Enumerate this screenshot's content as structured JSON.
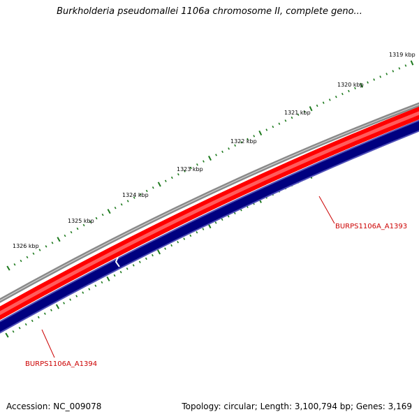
{
  "header": {
    "title": "Burkholderia pseudomallei 1106a chromosome II, complete geno..."
  },
  "ruler": {
    "labels": [
      "1319 kbp",
      "1320 kbp",
      "1321 kbp",
      "1322 kbp",
      "1323 kbp",
      "1324 kbp",
      "1325 kbp",
      "1326 kbp"
    ]
  },
  "features": {
    "gene_a_label": "BURPS1106A_A1393",
    "gene_b_label": "BURPS1106A_A1394"
  },
  "footer": {
    "accession": "Accession: NC_009078",
    "summary": "Topology: circular; Length: 3,100,794 bp; Genes: 3,169"
  },
  "colors": {
    "tick": "#1e7a1e",
    "backbone": "#808080",
    "forward_gene": "#ff0000",
    "reverse_gene": "#000080",
    "label": "#cc0000"
  }
}
